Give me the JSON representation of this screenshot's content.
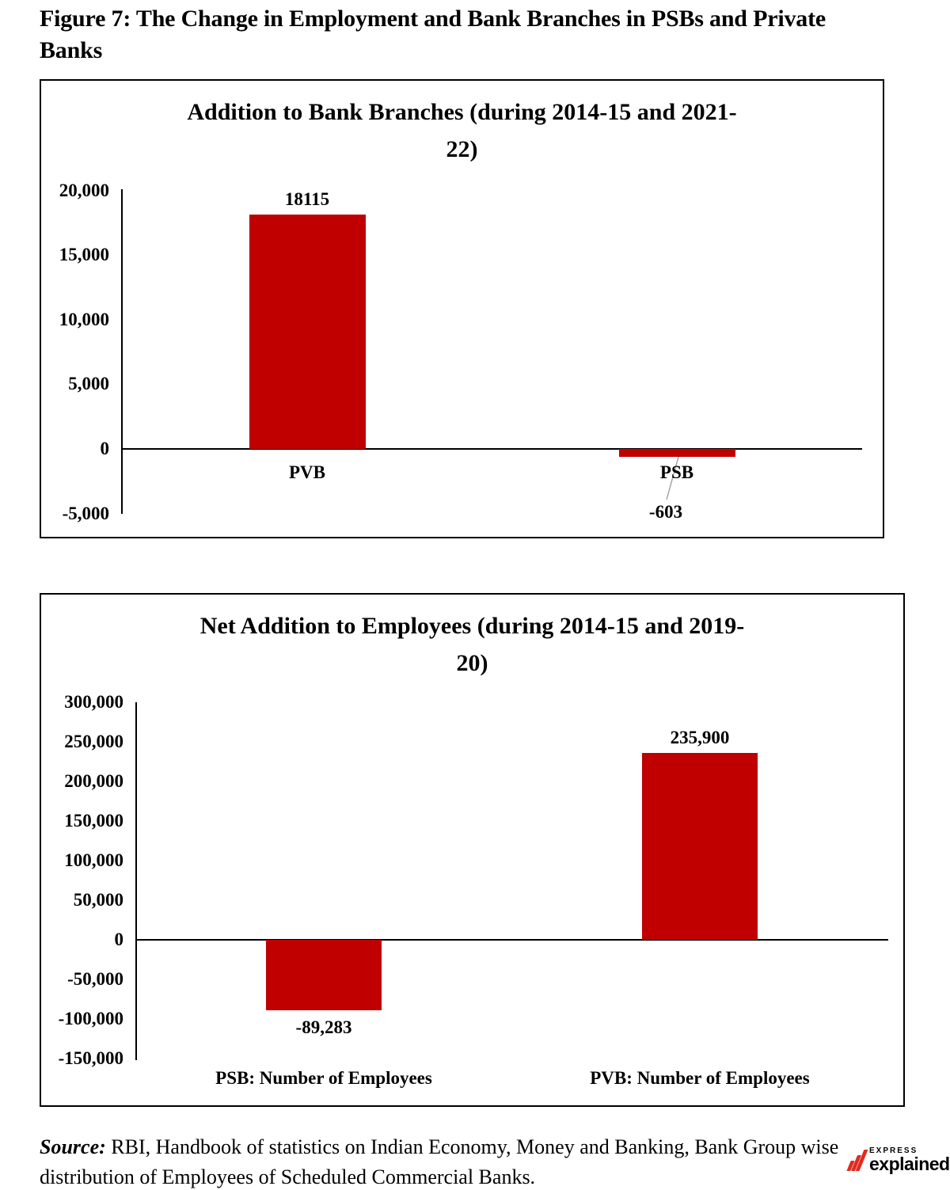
{
  "figure": {
    "title": "Figure 7: The Change in Employment and Bank Branches in PSBs and Private Banks",
    "title_lines": [
      "Figure 7: The Change in Employment and Bank Branches in PSBs and Private",
      "Banks"
    ]
  },
  "chart_data": [
    {
      "type": "bar",
      "title": "Addition to Bank Branches (during 2014-15 and 2021-22)",
      "title_lines": [
        "Addition to Bank Branches (during 2014-15 and 2021-",
        "22)"
      ],
      "categories": [
        "PVB",
        "PSB"
      ],
      "values": [
        18115,
        -603
      ],
      "value_labels": [
        "18115",
        "-603"
      ],
      "yticks": [
        20000,
        15000,
        10000,
        5000,
        0,
        -5000
      ],
      "ytick_labels": [
        "20,000",
        "15,000",
        "10,000",
        "5,000",
        "0",
        "-5,000"
      ],
      "ylim": [
        -5000,
        20000
      ],
      "bar_color": "#c00000",
      "grid": false,
      "legend": false
    },
    {
      "type": "bar",
      "title": "Net Addition to Employees (during 2014-15  and 2019-20)",
      "title_lines": [
        "Net Addition to Employees (during 2014-15  and 2019-",
        "20)"
      ],
      "categories": [
        "PSB: Number of Employees",
        "PVB: Number of Employees"
      ],
      "values": [
        -89283,
        235900
      ],
      "value_labels": [
        "-89,283",
        "235,900"
      ],
      "yticks": [
        300000,
        250000,
        200000,
        150000,
        100000,
        50000,
        0,
        -50000,
        -100000,
        -150000
      ],
      "ytick_labels": [
        "300,000",
        "250,000",
        "200,000",
        "150,000",
        "100,000",
        "50,000",
        "0",
        "-50,000",
        "-100,000",
        "-150,000"
      ],
      "ylim": [
        -150000,
        300000
      ],
      "bar_color": "#c00000",
      "grid": false,
      "legend": false
    }
  ],
  "source": {
    "label": "Source:",
    "text": "RBI, Handbook of statistics on Indian Economy, Money and Banking, Bank Group wise distribution of Employees of Scheduled Commercial Banks."
  },
  "logo": {
    "express": "EXPRESS",
    "explained": "explained",
    "period": ".",
    "accent_color": "#e02b20"
  },
  "colors": {
    "bar": "#c00000",
    "axis": "#000000",
    "leader_line": "#a6a6a6"
  }
}
